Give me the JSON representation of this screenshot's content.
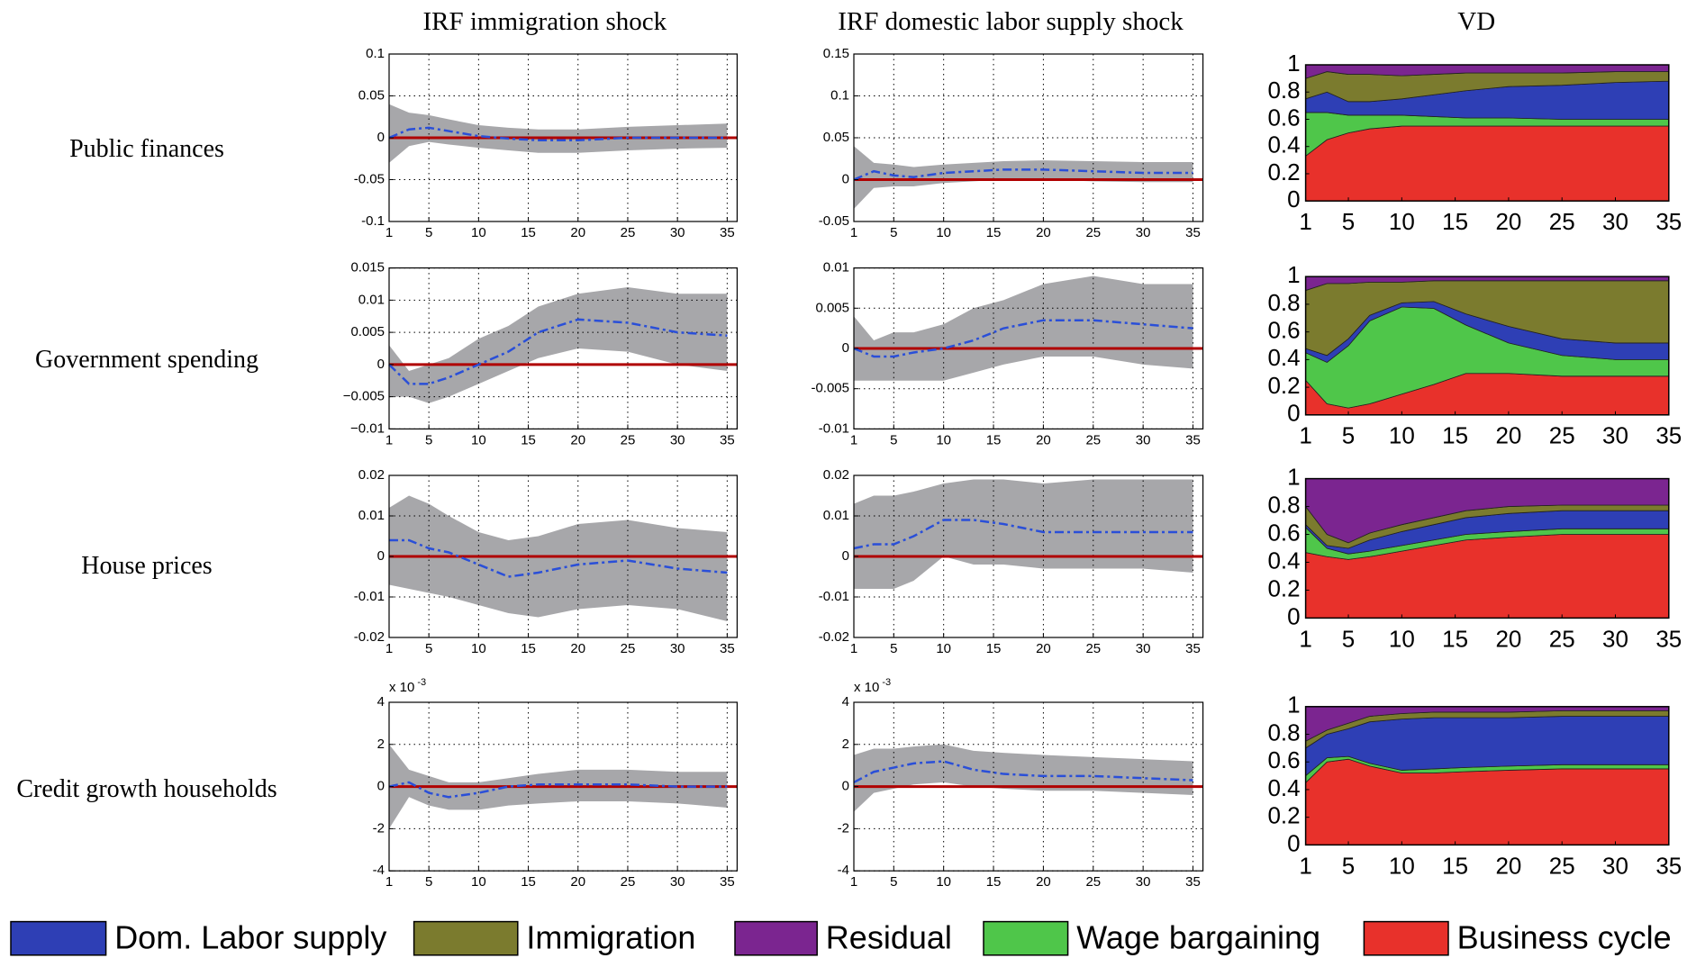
{
  "column_titles": [
    "IRF immigration shock",
    "IRF domestic labor supply shock",
    "VD"
  ],
  "row_labels": [
    "Public finances",
    "Government spending",
    "House prices",
    "Credit growth households"
  ],
  "legend": [
    {
      "name": "Dom. Labor supply",
      "color": "#2e3fb5"
    },
    {
      "name": "Immigration",
      "color": "#7b7b2e"
    },
    {
      "name": "Residual",
      "color": "#7b2590"
    },
    {
      "name": "Wage bargaining",
      "color": "#4fc64a"
    },
    {
      "name": "Business cycle",
      "color": "#e8312b"
    }
  ],
  "chart_data": [
    {
      "type": "line",
      "x": [
        1,
        3,
        5,
        7,
        10,
        13,
        16,
        20,
        25,
        30,
        35
      ],
      "xlim": [
        1,
        36
      ],
      "xticks": [
        1,
        5,
        10,
        15,
        20,
        25,
        30,
        35
      ],
      "ylim": [
        -0.1,
        0.1
      ],
      "yticks": [
        -0.1,
        -0.05,
        0,
        0.05,
        0.1
      ],
      "grid": true,
      "hline": 0,
      "hline_color": "#b00000",
      "band": {
        "color": "#a7a7aa",
        "upper": [
          0.04,
          0.03,
          0.027,
          0.022,
          0.015,
          0.012,
          0.01,
          0.01,
          0.013,
          0.015,
          0.017
        ],
        "lower": [
          -0.03,
          -0.01,
          -0.005,
          -0.008,
          -0.012,
          -0.015,
          -0.018,
          -0.018,
          -0.015,
          -0.013,
          -0.012
        ]
      },
      "series": [
        {
          "color": "#2a4fd8",
          "values": [
            0,
            0.01,
            0.012,
            0.008,
            0.002,
            -0.001,
            -0.003,
            -0.003,
            0,
            0,
            0
          ]
        }
      ]
    },
    {
      "type": "line",
      "x": [
        1,
        3,
        5,
        7,
        10,
        13,
        16,
        20,
        25,
        30,
        35
      ],
      "xlim": [
        1,
        36
      ],
      "xticks": [
        1,
        5,
        10,
        15,
        20,
        25,
        30,
        35
      ],
      "ylim": [
        -0.05,
        0.15
      ],
      "yticks": [
        -0.05,
        0,
        0.05,
        0.1,
        0.15
      ],
      "grid": true,
      "hline": 0,
      "hline_color": "#b00000",
      "band": {
        "color": "#a7a7aa",
        "upper": [
          0.04,
          0.02,
          0.018,
          0.015,
          0.018,
          0.02,
          0.022,
          0.023,
          0.022,
          0.021,
          0.021
        ],
        "lower": [
          -0.035,
          -0.01,
          -0.008,
          -0.008,
          -0.004,
          -0.002,
          0,
          0,
          -0.002,
          -0.003,
          -0.003
        ]
      },
      "series": [
        {
          "color": "#2a4fd8",
          "values": [
            0,
            0.01,
            0.005,
            0.003,
            0.008,
            0.01,
            0.012,
            0.012,
            0.01,
            0.008,
            0.008
          ]
        }
      ]
    },
    {
      "type": "area",
      "x": [
        1,
        3,
        5,
        7,
        10,
        13,
        16,
        20,
        25,
        30,
        35
      ],
      "xlim": [
        1,
        35
      ],
      "xticks": [
        1,
        5,
        10,
        15,
        20,
        25,
        30,
        35
      ],
      "ylim": [
        0,
        1
      ],
      "yticks": [
        0,
        0.2,
        0.4,
        0.6,
        0.8,
        1
      ],
      "series": [
        {
          "values": [
            0.1,
            0.15,
            0.1,
            0.1,
            0.12,
            0.16,
            0.2,
            0.23,
            0.25,
            0.27,
            0.28
          ]
        },
        {
          "values": [
            0.15,
            0.15,
            0.2,
            0.2,
            0.17,
            0.15,
            0.13,
            0.1,
            0.09,
            0.08,
            0.07
          ]
        },
        {
          "values": [
            0.1,
            0.05,
            0.07,
            0.07,
            0.08,
            0.07,
            0.06,
            0.06,
            0.06,
            0.05,
            0.05
          ]
        },
        {
          "values": [
            0.32,
            0.2,
            0.13,
            0.1,
            0.08,
            0.07,
            0.06,
            0.06,
            0.05,
            0.05,
            0.05
          ]
        },
        {
          "values": [
            0.33,
            0.45,
            0.5,
            0.53,
            0.55,
            0.55,
            0.55,
            0.55,
            0.55,
            0.55,
            0.55
          ]
        }
      ]
    },
    {
      "type": "line",
      "x": [
        1,
        3,
        5,
        7,
        10,
        13,
        16,
        20,
        25,
        30,
        35
      ],
      "xlim": [
        1,
        36
      ],
      "xticks": [
        1,
        5,
        10,
        15,
        20,
        25,
        30,
        35
      ],
      "ylim": [
        -0.01,
        0.015
      ],
      "yticks": [
        {
          "value": -0.01,
          "label": "−0.01"
        },
        {
          "value": -0.005,
          "label": "−0.005"
        },
        0,
        0.005,
        0.01,
        0.015
      ],
      "grid": true,
      "hline": 0,
      "hline_color": "#b00000",
      "band": {
        "color": "#a7a7aa",
        "upper": [
          0.003,
          -0.001,
          0,
          0.001,
          0.004,
          0.006,
          0.009,
          0.011,
          0.012,
          0.011,
          0.011
        ],
        "lower": [
          -0.005,
          -0.005,
          -0.006,
          -0.005,
          -0.003,
          -0.001,
          0.001,
          0.0025,
          0.002,
          0,
          -0.001
        ]
      },
      "series": [
        {
          "color": "#2a4fd8",
          "values": [
            0,
            -0.003,
            -0.003,
            -0.002,
            0,
            0.002,
            0.005,
            0.007,
            0.0065,
            0.005,
            0.0045
          ]
        }
      ]
    },
    {
      "type": "line",
      "x": [
        1,
        3,
        5,
        7,
        10,
        13,
        16,
        20,
        25,
        30,
        35
      ],
      "xlim": [
        1,
        36
      ],
      "xticks": [
        1,
        5,
        10,
        15,
        20,
        25,
        30,
        35
      ],
      "ylim": [
        -0.01,
        0.01
      ],
      "yticks": [
        -0.01,
        -0.005,
        0,
        0.005,
        0.01
      ],
      "grid": true,
      "hline": 0,
      "hline_color": "#b00000",
      "band": {
        "color": "#a7a7aa",
        "upper": [
          0.004,
          0.001,
          0.002,
          0.002,
          0.003,
          0.005,
          0.006,
          0.008,
          0.009,
          0.008,
          0.008
        ],
        "lower": [
          -0.004,
          -0.004,
          -0.004,
          -0.004,
          -0.004,
          -0.003,
          -0.002,
          -0.001,
          -0.001,
          -0.002,
          -0.0025
        ]
      },
      "series": [
        {
          "color": "#2a4fd8",
          "values": [
            0,
            -0.001,
            -0.001,
            -0.0005,
            0,
            0.001,
            0.0025,
            0.0035,
            0.0035,
            0.003,
            0.0025
          ]
        }
      ]
    },
    {
      "type": "area",
      "x": [
        1,
        3,
        5,
        7,
        10,
        13,
        16,
        20,
        25,
        30,
        35
      ],
      "xlim": [
        1,
        35
      ],
      "xticks": [
        1,
        5,
        10,
        15,
        20,
        25,
        30,
        35
      ],
      "ylim": [
        0,
        1
      ],
      "yticks": [
        0,
        0.2,
        0.4,
        0.6,
        0.8,
        1
      ],
      "series": [
        {
          "values": [
            0.03,
            0.05,
            0.05,
            0.04,
            0.03,
            0.05,
            0.08,
            0.12,
            0.12,
            0.12,
            0.12
          ]
        },
        {
          "values": [
            0.42,
            0.52,
            0.4,
            0.24,
            0.15,
            0.15,
            0.24,
            0.33,
            0.42,
            0.45,
            0.45
          ]
        },
        {
          "values": [
            0.1,
            0.05,
            0.05,
            0.04,
            0.04,
            0.03,
            0.03,
            0.03,
            0.03,
            0.03,
            0.03
          ]
        },
        {
          "values": [
            0.2,
            0.3,
            0.45,
            0.6,
            0.63,
            0.55,
            0.35,
            0.22,
            0.15,
            0.12,
            0.12
          ]
        },
        {
          "values": [
            0.25,
            0.08,
            0.05,
            0.08,
            0.15,
            0.22,
            0.3,
            0.3,
            0.28,
            0.28,
            0.28
          ]
        }
      ]
    },
    {
      "type": "line",
      "x": [
        1,
        3,
        5,
        7,
        10,
        13,
        16,
        20,
        25,
        30,
        35
      ],
      "xlim": [
        1,
        36
      ],
      "xticks": [
        1,
        5,
        10,
        15,
        20,
        25,
        30,
        35
      ],
      "ylim": [
        -0.02,
        0.02
      ],
      "yticks": [
        -0.02,
        -0.01,
        0,
        0.01,
        0.02
      ],
      "grid": true,
      "hline": 0,
      "hline_color": "#b00000",
      "band": {
        "color": "#a7a7aa",
        "upper": [
          0.012,
          0.015,
          0.013,
          0.01,
          0.006,
          0.004,
          0.005,
          0.008,
          0.009,
          0.007,
          0.006
        ],
        "lower": [
          -0.007,
          -0.008,
          -0.009,
          -0.01,
          -0.012,
          -0.014,
          -0.015,
          -0.013,
          -0.012,
          -0.013,
          -0.016
        ]
      },
      "series": [
        {
          "color": "#2a4fd8",
          "values": [
            0.004,
            0.004,
            0.002,
            0.001,
            -0.002,
            -0.005,
            -0.004,
            -0.002,
            -0.001,
            -0.003,
            -0.004
          ]
        }
      ]
    },
    {
      "type": "line",
      "x": [
        1,
        3,
        5,
        7,
        10,
        13,
        16,
        20,
        25,
        30,
        35
      ],
      "xlim": [
        1,
        36
      ],
      "xticks": [
        1,
        5,
        10,
        15,
        20,
        25,
        30,
        35
      ],
      "ylim": [
        -0.02,
        0.02
      ],
      "yticks": [
        -0.02,
        -0.01,
        0,
        0.01,
        0.02
      ],
      "grid": true,
      "hline": 0,
      "hline_color": "#b00000",
      "band": {
        "color": "#a7a7aa",
        "upper": [
          0.013,
          0.015,
          0.015,
          0.016,
          0.018,
          0.019,
          0.019,
          0.018,
          0.019,
          0.019,
          0.019
        ],
        "lower": [
          -0.008,
          -0.008,
          -0.008,
          -0.006,
          0,
          -0.002,
          -0.002,
          -0.003,
          -0.003,
          -0.003,
          -0.004
        ]
      },
      "series": [
        {
          "color": "#2a4fd8",
          "values": [
            0.002,
            0.003,
            0.003,
            0.005,
            0.009,
            0.009,
            0.008,
            0.006,
            0.006,
            0.006,
            0.006
          ]
        }
      ]
    },
    {
      "type": "area",
      "x": [
        1,
        3,
        5,
        7,
        10,
        13,
        16,
        20,
        25,
        30,
        35
      ],
      "xlim": [
        1,
        35
      ],
      "xticks": [
        1,
        5,
        10,
        15,
        20,
        25,
        30,
        35
      ],
      "ylim": [
        0,
        1
      ],
      "yticks": [
        0,
        0.2,
        0.4,
        0.6,
        0.8,
        1
      ],
      "series": [
        {
          "values": [
            0.02,
            0.02,
            0.04,
            0.08,
            0.1,
            0.11,
            0.12,
            0.13,
            0.13,
            0.13,
            0.13
          ]
        },
        {
          "values": [
            0.13,
            0.08,
            0.04,
            0.05,
            0.05,
            0.05,
            0.05,
            0.05,
            0.04,
            0.04,
            0.04
          ]
        },
        {
          "values": [
            0.2,
            0.4,
            0.46,
            0.39,
            0.33,
            0.28,
            0.23,
            0.2,
            0.19,
            0.19,
            0.19
          ]
        },
        {
          "values": [
            0.18,
            0.06,
            0.04,
            0.04,
            0.04,
            0.04,
            0.04,
            0.04,
            0.04,
            0.04,
            0.04
          ]
        },
        {
          "values": [
            0.47,
            0.44,
            0.42,
            0.44,
            0.48,
            0.52,
            0.56,
            0.58,
            0.6,
            0.6,
            0.6
          ]
        }
      ]
    },
    {
      "type": "line",
      "x": [
        1,
        3,
        5,
        7,
        10,
        13,
        16,
        20,
        25,
        30,
        35
      ],
      "xlim": [
        1,
        36
      ],
      "xticks": [
        1,
        5,
        10,
        15,
        20,
        25,
        30,
        35
      ],
      "ylim": [
        -4,
        4
      ],
      "yticks": [
        -4,
        -2,
        0,
        2,
        4
      ],
      "y_multiplier": "x 10",
      "y_multiplier_exponent": "-3",
      "grid": true,
      "hline": 0,
      "hline_color": "#b00000",
      "band": {
        "color": "#a7a7aa",
        "upper": [
          2,
          0.8,
          0.5,
          0.2,
          0.2,
          0.4,
          0.6,
          0.8,
          0.8,
          0.7,
          0.7
        ],
        "lower": [
          -2,
          -0.5,
          -0.9,
          -1.1,
          -1.1,
          -0.9,
          -0.8,
          -0.7,
          -0.7,
          -0.8,
          -1.0
        ]
      },
      "series": [
        {
          "color": "#2a4fd8",
          "values": [
            0,
            0.2,
            -0.3,
            -0.5,
            -0.3,
            0,
            0.1,
            0.1,
            0.1,
            0,
            0
          ]
        }
      ]
    },
    {
      "type": "line",
      "x": [
        1,
        3,
        5,
        7,
        10,
        13,
        16,
        20,
        25,
        30,
        35
      ],
      "xlim": [
        1,
        36
      ],
      "xticks": [
        1,
        5,
        10,
        15,
        20,
        25,
        30,
        35
      ],
      "ylim": [
        -4,
        4
      ],
      "yticks": [
        -4,
        -2,
        0,
        2,
        4
      ],
      "y_multiplier": "x 10",
      "y_multiplier_exponent": "-3",
      "grid": true,
      "hline": 0,
      "hline_color": "#b00000",
      "band": {
        "color": "#a7a7aa",
        "upper": [
          1.5,
          1.8,
          1.8,
          1.9,
          2,
          1.7,
          1.6,
          1.5,
          1.4,
          1.3,
          1.2
        ],
        "lower": [
          -1.2,
          -0.3,
          -0.1,
          0.1,
          0.2,
          0,
          -0.1,
          -0.2,
          -0.2,
          -0.3,
          -0.4
        ]
      },
      "series": [
        {
          "color": "#2a4fd8",
          "values": [
            0.2,
            0.7,
            0.9,
            1.1,
            1.2,
            0.8,
            0.6,
            0.5,
            0.5,
            0.4,
            0.3
          ]
        }
      ]
    },
    {
      "type": "area",
      "x": [
        1,
        3,
        5,
        7,
        10,
        13,
        16,
        20,
        25,
        30,
        35
      ],
      "xlim": [
        1,
        35
      ],
      "xticks": [
        1,
        5,
        10,
        15,
        20,
        25,
        30,
        35
      ],
      "ylim": [
        0,
        1
      ],
      "yticks": [
        0,
        0.2,
        0.4,
        0.6,
        0.8,
        1
      ],
      "series": [
        {
          "values": [
            0.2,
            0.17,
            0.2,
            0.3,
            0.37,
            0.37,
            0.36,
            0.35,
            0.35,
            0.35,
            0.35
          ]
        },
        {
          "values": [
            0.05,
            0.03,
            0.04,
            0.04,
            0.04,
            0.04,
            0.04,
            0.04,
            0.04,
            0.04,
            0.04
          ]
        },
        {
          "values": [
            0.25,
            0.17,
            0.12,
            0.07,
            0.05,
            0.04,
            0.04,
            0.04,
            0.03,
            0.03,
            0.03
          ]
        },
        {
          "values": [
            0.05,
            0.03,
            0.02,
            0.02,
            0.02,
            0.03,
            0.03,
            0.03,
            0.03,
            0.03,
            0.03
          ]
        },
        {
          "values": [
            0.45,
            0.6,
            0.62,
            0.57,
            0.52,
            0.52,
            0.53,
            0.54,
            0.55,
            0.55,
            0.55
          ]
        }
      ]
    }
  ]
}
